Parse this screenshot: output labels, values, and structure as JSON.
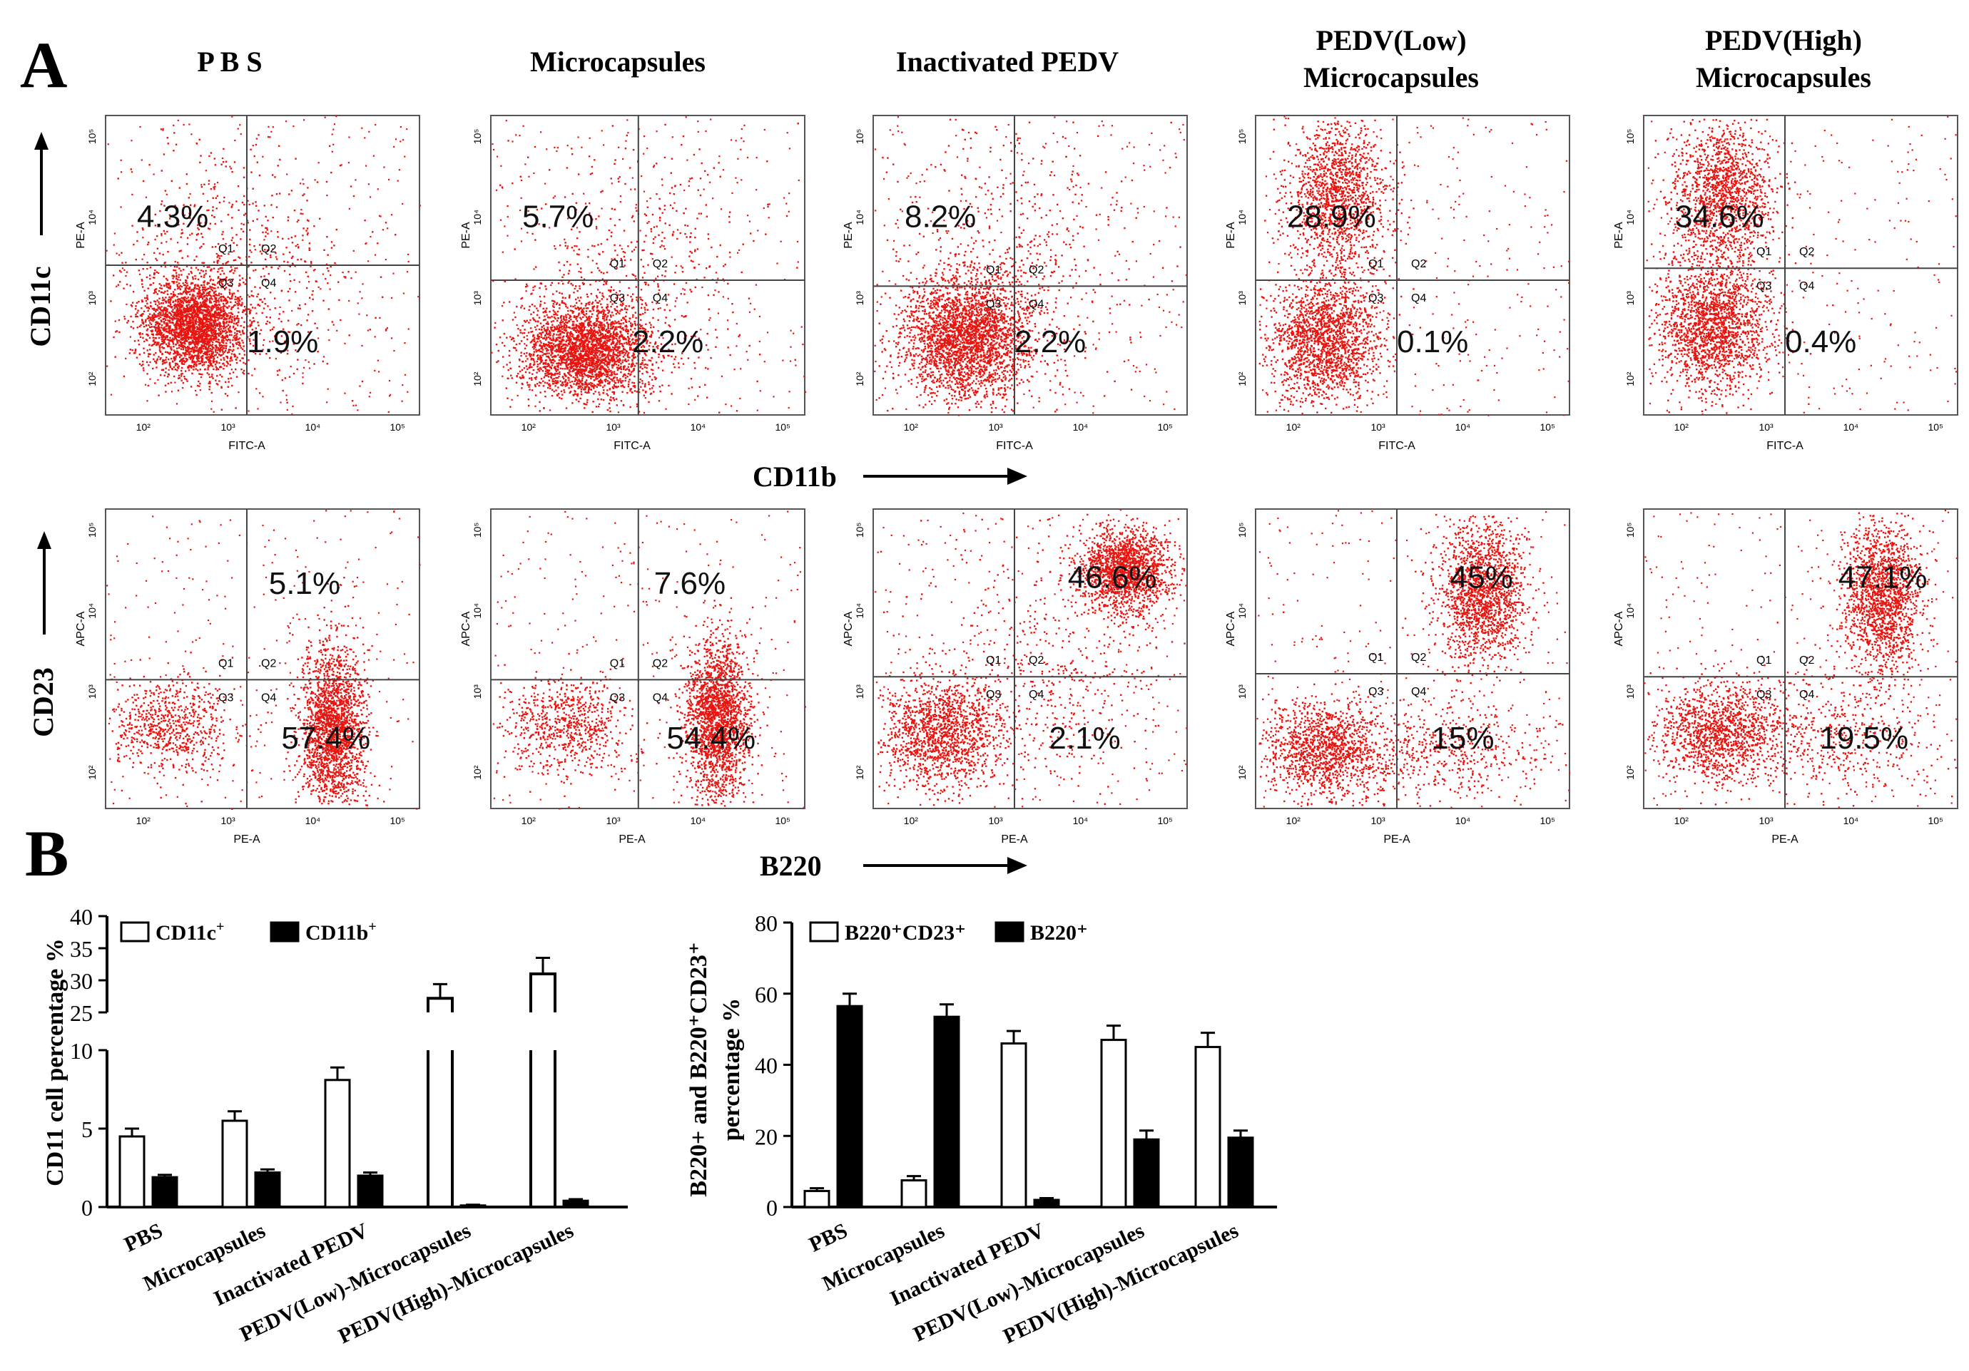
{
  "panel_labels": {
    "a": "A",
    "b": "B"
  },
  "flow_panels": {
    "column_titles": [
      [
        "P B S"
      ],
      [
        "Microcapsules"
      ],
      [
        "Inactivated PEDV"
      ],
      [
        "PEDV(Low)",
        "Microcapsules"
      ],
      [
        "PEDV(High)",
        "Microcapsules"
      ]
    ],
    "rows": [
      {
        "y_label": "CD11c",
        "x_label": "CD11b",
        "x_axis_label": "FITC-A",
        "y_axis_label": "PE-A",
        "quadrant_labels": [
          "Q1",
          "Q2",
          "Q3",
          "Q4"
        ],
        "q1_values": [
          "4.3%",
          "5.7%",
          "8.2%",
          "28.9%",
          "34.6%"
        ],
        "q4_values": [
          "1.9%",
          "2.2%",
          "2.2%",
          "0.1%",
          "0.4%"
        ]
      },
      {
        "y_label": "CD23",
        "x_label": "B220",
        "x_axis_label": "PE-A",
        "y_axis_label": "APC-A",
        "quadrant_labels": [
          "Q1",
          "Q2",
          "Q3",
          "Q4"
        ],
        "q2_values": [
          "5.1%",
          "7.6%",
          "46.6%",
          "45%",
          "47.1%"
        ],
        "q4_values": [
          "57.4%",
          "54.4%",
          "2.1%",
          "15%",
          "19.5%"
        ]
      }
    ],
    "tick_labels": [
      "10²",
      "10³",
      "10⁴",
      "10⁵"
    ]
  },
  "chart_data": [
    {
      "type": "bar",
      "title": "",
      "ylabel": "CD11 cell percentage %",
      "xlabel": "",
      "y_axis_break": [
        10,
        25
      ],
      "ylim": [
        0,
        40
      ],
      "yticks_lower": [
        "0",
        "5",
        "10"
      ],
      "yticks_upper": [
        "25",
        "30",
        "35",
        "40"
      ],
      "categories": [
        "PBS",
        "Microcapsules",
        "Inactivated PEDV",
        "PEDV(Low)-Microcapsules",
        "PEDV(High)-Microcapsules"
      ],
      "series": [
        {
          "name": "CD11c",
          "name_sup": "+",
          "fill": "#ffffff",
          "values": [
            4.5,
            5.5,
            8.1,
            27.2,
            31.0
          ],
          "errors": [
            0.5,
            0.6,
            0.8,
            2.2,
            2.5
          ]
        },
        {
          "name": "CD11b",
          "name_sup": "+",
          "fill": "#000000",
          "values": [
            1.9,
            2.2,
            2.0,
            0.1,
            0.4
          ],
          "errors": [
            0.15,
            0.2,
            0.2,
            0.05,
            0.1
          ]
        }
      ]
    },
    {
      "type": "bar",
      "title": "",
      "ylabel": "B220+ and B220⁺CD23⁺ percentage %",
      "ylabel_line1": "B220+ and B220⁺CD23⁺",
      "ylabel_line2": "percentage %",
      "xlabel": "",
      "ylim": [
        0,
        80
      ],
      "yticks": [
        "0",
        "20",
        "40",
        "60",
        "80"
      ],
      "categories": [
        "PBS",
        "Microcapsules",
        "Inactivated PEDV",
        "PEDV(Low)-Microcapsules",
        "PEDV(High)-Microcapsules"
      ],
      "series": [
        {
          "name": "B220⁺CD23⁺",
          "fill": "#ffffff",
          "values": [
            4.5,
            7.5,
            46.0,
            47.0,
            45.0
          ],
          "errors": [
            0.8,
            1.2,
            3.5,
            4.0,
            4.0
          ]
        },
        {
          "name": "B220⁺",
          "fill": "#000000",
          "values": [
            56.5,
            53.5,
            2.0,
            19.0,
            19.5
          ],
          "errors": [
            3.5,
            3.5,
            0.5,
            2.5,
            2.0
          ]
        }
      ]
    }
  ],
  "colors": {
    "dots": "#e8140f",
    "axis": "#000000",
    "frame": "#555555"
  }
}
